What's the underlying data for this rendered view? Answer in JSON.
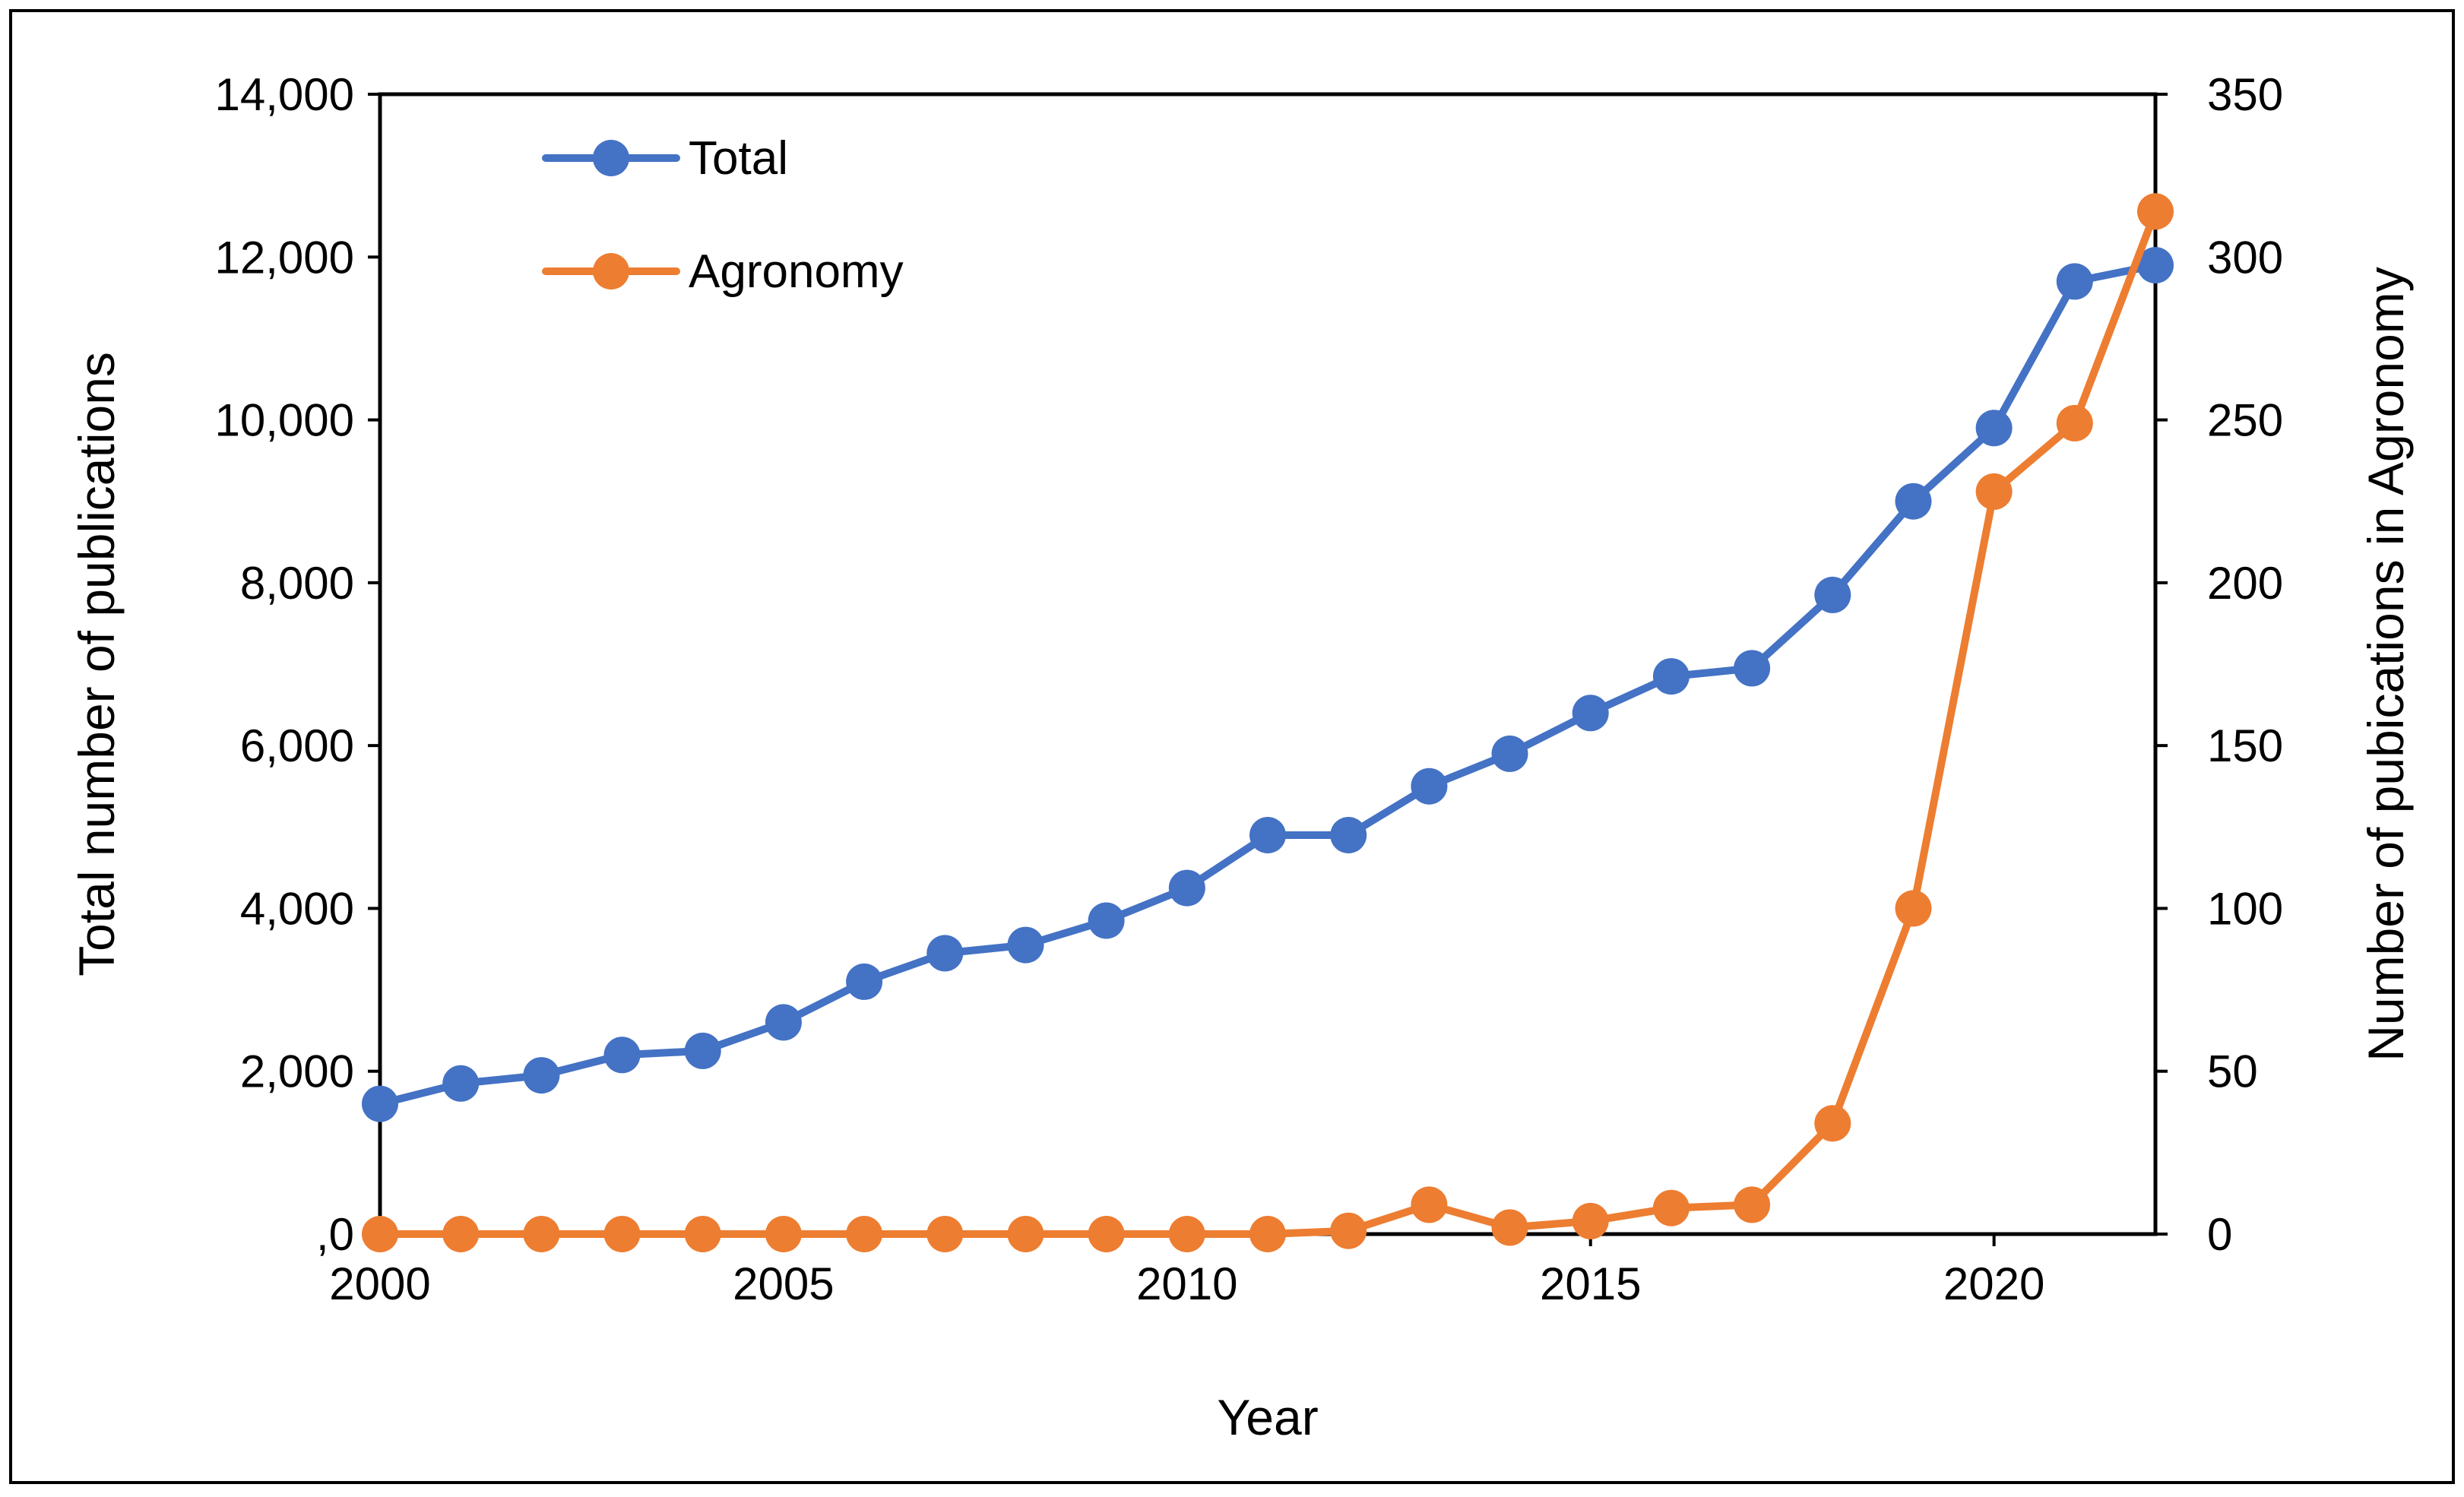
{
  "chart_data": {
    "type": "line",
    "title": "",
    "xlabel": "Year",
    "ylabel": "Total number of publications",
    "y2label": "Number of pubications in Agronomy",
    "xlim": [
      2000,
      2022
    ],
    "ylim": [
      0,
      14000
    ],
    "y2lim": [
      0,
      350
    ],
    "grid": false,
    "legend_position": "top-left",
    "x_ticks": [
      {
        "value": 2000,
        "label": "2000"
      },
      {
        "value": 2005,
        "label": "2005"
      },
      {
        "value": 2010,
        "label": "2010"
      },
      {
        "value": 2015,
        "label": "2015"
      },
      {
        "value": 2020,
        "label": "2020"
      }
    ],
    "y_ticks": [
      {
        "value": 0,
        "label": ",0"
      },
      {
        "value": 2000,
        "label": "2,000"
      },
      {
        "value": 4000,
        "label": "4,000"
      },
      {
        "value": 6000,
        "label": "6,000"
      },
      {
        "value": 8000,
        "label": "8,000"
      },
      {
        "value": 10000,
        "label": "10,000"
      },
      {
        "value": 12000,
        "label": "12,000"
      },
      {
        "value": 14000,
        "label": "14,000"
      }
    ],
    "y2_ticks": [
      {
        "value": 0,
        "label": "0"
      },
      {
        "value": 50,
        "label": "50"
      },
      {
        "value": 100,
        "label": "100"
      },
      {
        "value": 150,
        "label": "150"
      },
      {
        "value": 200,
        "label": "200"
      },
      {
        "value": 250,
        "label": "250"
      },
      {
        "value": 300,
        "label": "300"
      },
      {
        "value": 350,
        "label": "350"
      }
    ],
    "x": [
      2000,
      2001,
      2002,
      2003,
      2004,
      2005,
      2006,
      2007,
      2008,
      2009,
      2010,
      2011,
      2012,
      2013,
      2014,
      2015,
      2016,
      2017,
      2018,
      2019,
      2020,
      2021,
      2022
    ],
    "series": [
      {
        "name": "Total",
        "axis": "left",
        "color": "#4472C4",
        "values": [
          1600,
          1850,
          1950,
          2200,
          2250,
          2600,
          3100,
          3450,
          3550,
          3850,
          4250,
          4900,
          4900,
          5500,
          5900,
          6400,
          6850,
          6950,
          7850,
          9000,
          9900,
          11700,
          11900
        ]
      },
      {
        "name": "Agronomy",
        "axis": "right",
        "color": "#ED7D31",
        "values": [
          0,
          0,
          0,
          0,
          0,
          0,
          0,
          0,
          0,
          0,
          0,
          0,
          1,
          9,
          2,
          4,
          8,
          9,
          34,
          100,
          228,
          249,
          314
        ]
      }
    ]
  }
}
